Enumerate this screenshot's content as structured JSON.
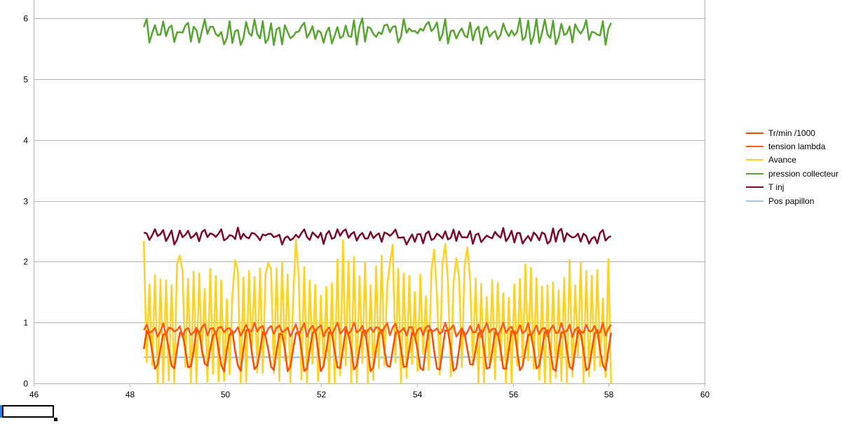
{
  "chart_data": {
    "type": "line",
    "x_axis": {
      "min": 46,
      "max": 60,
      "ticks": [
        46,
        48,
        50,
        52,
        54,
        56,
        58,
        60
      ]
    },
    "y_axis": {
      "min": 0,
      "max": 6.3,
      "ticks": [
        0,
        1,
        2,
        3,
        4,
        5,
        6
      ]
    },
    "grid": "horizontal",
    "legend_position": "right",
    "x_start": 48.3,
    "x_end": 58.05,
    "samples": 170,
    "series": [
      {
        "name": "Tr/min /1000",
        "color": "#ff4d00",
        "base": 0.55,
        "amp": 0.4,
        "period": 6,
        "jitter": 0.05
      },
      {
        "name": "tension lambda",
        "color": "#ff5a1a",
        "base": 0.88,
        "amp": 0.08,
        "period": 3,
        "jitter": 0.05
      },
      {
        "name": "Avance",
        "color": "#ffd21f",
        "base": 0.9,
        "amp": 1.05,
        "period": 2,
        "jitter": 0.4
      },
      {
        "name": "pression collecteur",
        "color": "#56a530",
        "base": 5.78,
        "amp": 0.12,
        "period": 3,
        "jitter": 0.12
      },
      {
        "name": "T inj",
        "color": "#7b0a2a",
        "base": 2.42,
        "amp": 0.07,
        "period": 3,
        "jitter": 0.08
      },
      {
        "name": "Pos papillon",
        "color": "#9cc9f2",
        "base": 0.43,
        "amp": 0.0,
        "period": 1,
        "jitter": 0.005
      }
    ]
  },
  "icons": {
    "sheet_cell_marker": "selected-cell-icon"
  }
}
